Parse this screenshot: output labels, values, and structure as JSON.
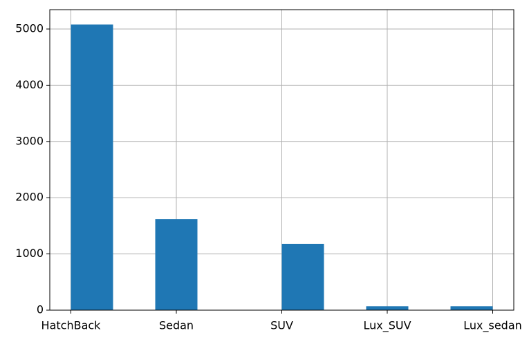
{
  "chart_data": {
    "type": "histogram",
    "bins": [
      0,
      0.4,
      0.8,
      1.2,
      1.6,
      2.0,
      2.4,
      2.8,
      3.2,
      3.6,
      4.0
    ],
    "values": [
      5080,
      0,
      1620,
      0,
      0,
      1180,
      0,
      70,
      0,
      70
    ],
    "color": "#1f77b4",
    "xlim": [
      -0.2,
      4.2
    ],
    "xticks": [
      {
        "value": 0,
        "label": "HatchBack"
      },
      {
        "value": 1,
        "label": "Sedan"
      },
      {
        "value": 2,
        "label": "SUV"
      },
      {
        "value": 3,
        "label": "Lux_SUV"
      },
      {
        "value": 4,
        "label": "Lux_sedan"
      }
    ],
    "ylim": [
      0,
      5344
    ],
    "yticks": [
      0,
      1000,
      2000,
      3000,
      4000,
      5000
    ],
    "grid": true
  }
}
